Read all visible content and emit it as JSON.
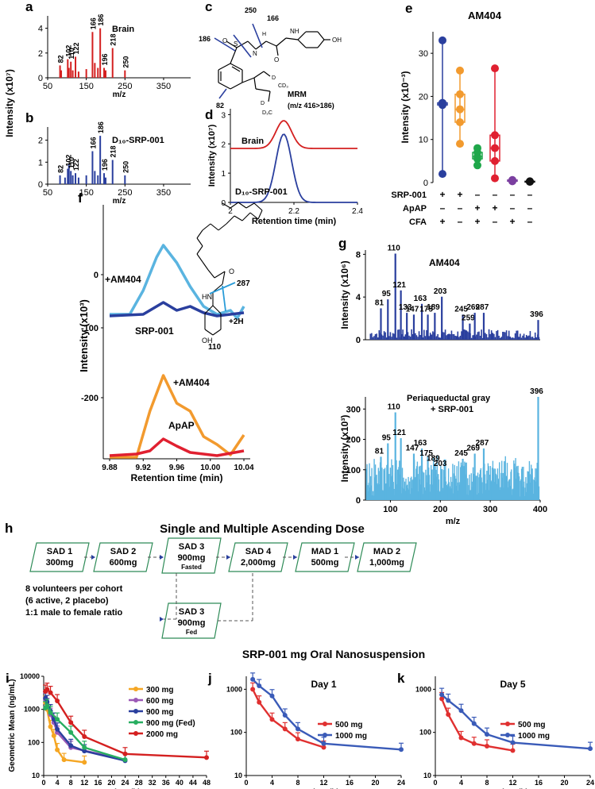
{
  "panels": {
    "a": {
      "letter": "a",
      "title": "Brain",
      "ylabel": "Intensity (x10⁷)",
      "xlabel": "m/z",
      "yticks": [
        "0",
        "2",
        "4"
      ],
      "xticks": [
        "50",
        "150",
        "250",
        "350"
      ],
      "chart_data": {
        "type": "bar",
        "color": "#d42020",
        "xlim": [
          50,
          420
        ],
        "ylim": [
          0,
          5
        ],
        "peaks": [
          [
            82,
            1.0
          ],
          [
            85,
            0.6
          ],
          [
            102,
            1.5
          ],
          [
            105,
            0.8
          ],
          [
            110,
            1.3
          ],
          [
            115,
            0.6
          ],
          [
            122,
            1.7
          ],
          [
            130,
            0.5
          ],
          [
            150,
            0.7
          ],
          [
            166,
            3.7
          ],
          [
            172,
            1.2
          ],
          [
            180,
            0.8
          ],
          [
            186,
            4.0
          ],
          [
            196,
            0.8
          ],
          [
            200,
            0.6
          ],
          [
            218,
            2.4
          ],
          [
            250,
            0.6
          ]
        ],
        "labels": [
          [
            82,
            "82"
          ],
          [
            102,
            "102"
          ],
          [
            110,
            "110"
          ],
          [
            122,
            "122"
          ],
          [
            166,
            "166"
          ],
          [
            186,
            "186"
          ],
          [
            196,
            "196"
          ],
          [
            218,
            "218"
          ],
          [
            250,
            "250"
          ]
        ]
      }
    },
    "b": {
      "letter": "b",
      "title": "D₁₀-SRP-001",
      "ylabel": "Intensity (x10⁷)",
      "xlabel": "m/z",
      "yticks": [
        "0",
        "1",
        "2"
      ],
      "xticks": [
        "50",
        "150",
        "250",
        "350"
      ],
      "chart_data": {
        "type": "bar",
        "color": "#2a3f9e",
        "xlim": [
          50,
          420
        ],
        "ylim": [
          0,
          2.6
        ],
        "peaks": [
          [
            82,
            0.4
          ],
          [
            95,
            0.3
          ],
          [
            102,
            0.7
          ],
          [
            105,
            0.9
          ],
          [
            110,
            0.6
          ],
          [
            115,
            0.4
          ],
          [
            122,
            0.5
          ],
          [
            130,
            0.3
          ],
          [
            150,
            0.4
          ],
          [
            166,
            1.5
          ],
          [
            172,
            0.6
          ],
          [
            180,
            0.4
          ],
          [
            186,
            2.2
          ],
          [
            196,
            0.5
          ],
          [
            200,
            0.3
          ],
          [
            218,
            1.1
          ],
          [
            250,
            0.4
          ]
        ],
        "labels": [
          [
            82,
            "82"
          ],
          [
            102,
            "102"
          ],
          [
            110,
            "110"
          ],
          [
            122,
            "122"
          ],
          [
            166,
            "166"
          ],
          [
            186,
            "186"
          ],
          [
            196,
            "196"
          ],
          [
            218,
            "218"
          ],
          [
            250,
            "250"
          ]
        ]
      }
    },
    "c": {
      "letter": "c",
      "mrm": "MRM",
      "mrm_sub": "(m/z 416>186)",
      "labels": {
        "l250": "250",
        "l166": "166",
        "l186": "186",
        "l82": "82",
        "oh": "OH",
        "nh": "NH",
        "n": "N",
        "o": "O",
        "s": "S",
        "h": "H",
        "d": "D",
        "cd3": "CD₃",
        "d3c": "D₃C"
      }
    },
    "d": {
      "letter": "d",
      "ylabel": "Intensity (x10⁷)",
      "xlabel": "Retention time (min)",
      "yticks": [
        "0",
        "1",
        "2",
        "3"
      ],
      "xticks": [
        "2",
        "2.2",
        "2.4"
      ],
      "series": [
        {
          "name": "Brain",
          "color": "#d42020"
        },
        {
          "name": "D₁₀-SRP-001",
          "color": "#2a3f9e"
        }
      ]
    },
    "e": {
      "letter": "e",
      "title": "AM404",
      "ylabel": "Intensity (x10⁻³)",
      "yticks": [
        "0",
        "10",
        "20",
        "30"
      ],
      "rows": [
        {
          "name": "SRP-001",
          "marks": [
            "+",
            "+",
            "–",
            "–",
            "–",
            "–"
          ]
        },
        {
          "name": "ApAP",
          "marks": [
            "–",
            "–",
            "+",
            "+",
            "–",
            "–"
          ]
        },
        {
          "name": "CFA",
          "marks": [
            "+",
            "–",
            "+",
            "–",
            "+",
            "–"
          ]
        }
      ],
      "chart_data": {
        "type": "box",
        "ylim": [
          0,
          35
        ],
        "groups": [
          {
            "color": "#2a3f9e",
            "points": [
              33,
              18.5,
              18,
              2
            ]
          },
          {
            "color": "#f29a2e",
            "points": [
              26,
              20.5,
              17,
              14,
              9
            ]
          },
          {
            "color": "#1fa74a",
            "points": [
              8,
              7,
              6,
              5.5,
              4
            ]
          },
          {
            "color": "#e02030",
            "points": [
              26.5,
              11,
              8,
              5,
              1
            ]
          },
          {
            "color": "#7b3fa0",
            "points": [
              0.6,
              0.3
            ]
          },
          {
            "color": "#111111",
            "points": [
              0.3,
              0.2,
              0.2
            ]
          }
        ]
      }
    },
    "f": {
      "letter": "f",
      "ylabel": "Intensity (x10³)",
      "xlabel": "Retention time (min)",
      "yticks": [
        "0",
        "-100",
        "-200"
      ],
      "xticks": [
        "9.88",
        "9.92",
        "9.96",
        "10.00",
        "10.04"
      ],
      "frag_labels": {
        "f287": "287",
        "f110": "110",
        "plus2h": "+2H",
        "hn": "HN",
        "o": "O",
        "oh": "OH"
      },
      "series": [
        {
          "name": "+AM404",
          "color": "#5ab4e0"
        },
        {
          "name": "SRP-001",
          "color": "#2a3f9e"
        },
        {
          "name": "+AM404",
          "color": "#f29a2e"
        },
        {
          "name": "ApAP",
          "color": "#e02030"
        }
      ]
    },
    "g": {
      "letter": "g",
      "xlabel": "m/z",
      "xticks": [
        "100",
        "200",
        "300",
        "400"
      ],
      "top": {
        "title": "AM404",
        "ylabel": "Intensity (x10⁶)",
        "yticks": [
          "0",
          "4",
          "8"
        ],
        "labels": [
          [
            110,
            "110"
          ],
          [
            81,
            "81"
          ],
          [
            95,
            "95"
          ],
          [
            121,
            "121"
          ],
          [
            133,
            "133"
          ],
          [
            147,
            "147"
          ],
          [
            163,
            "163"
          ],
          [
            175,
            "175"
          ],
          [
            189,
            "189"
          ],
          [
            203,
            "203"
          ],
          [
            245,
            "245"
          ],
          [
            259,
            "259"
          ],
          [
            269,
            "269"
          ],
          [
            287,
            "287"
          ],
          [
            396,
            "396"
          ]
        ]
      },
      "bottom": {
        "title": "Periaqueductal gray",
        "title2": "+ SRP-001",
        "ylabel": "Intensity (x10³)",
        "yticks": [
          "0",
          "100",
          "200",
          "300"
        ],
        "labels": [
          [
            110,
            "110"
          ],
          [
            81,
            "81"
          ],
          [
            95,
            "95"
          ],
          [
            121,
            "121"
          ],
          [
            147,
            "147"
          ],
          [
            163,
            "163"
          ],
          [
            175,
            "175"
          ],
          [
            189,
            "189"
          ],
          [
            203,
            "203"
          ],
          [
            245,
            "245"
          ],
          [
            269,
            "269"
          ],
          [
            287,
            "287"
          ],
          [
            396,
            "396"
          ]
        ]
      }
    },
    "h": {
      "letter": "h",
      "title": "Single and Multiple Ascending Dose",
      "boxes": [
        {
          "l1": "SAD 1",
          "l2": "300mg"
        },
        {
          "l1": "SAD 2",
          "l2": "600mg"
        },
        {
          "l1": "SAD 3",
          "l2": "900mg",
          "l3": "Fasted"
        },
        {
          "l1": "SAD 4",
          "l2": "2,000mg"
        },
        {
          "l1": "MAD 1",
          "l2": "500mg"
        },
        {
          "l1": "MAD 2",
          "l2": "1,000mg"
        },
        {
          "l1": "SAD 3",
          "l2": "900mg",
          "l3": "Fed"
        }
      ],
      "notes": [
        "8 volunteers per cohort",
        "(6 active, 2 placebo)",
        "1:1 male to female ratio"
      ]
    },
    "pk_title": "SRP-001 mg Oral Nanosuspension",
    "i": {
      "letter": "i",
      "ylabel": "Geometric Mean (ng/mL)",
      "xlabel": "Time (h)",
      "yticks": [
        "10",
        "100",
        "1000",
        "10000"
      ],
      "xticks": [
        "0",
        "4",
        "8",
        "12",
        "16",
        "20",
        "24",
        "28",
        "32",
        "36",
        "40",
        "44",
        "48"
      ],
      "chart_data": {
        "type": "line",
        "yscale": "log",
        "xlim": [
          0,
          48
        ],
        "ylim": [
          10,
          10000
        ],
        "series": [
          {
            "name": "300 mg",
            "color": "#f5a623",
            "x": [
              0.5,
              1,
              2,
              3,
              4,
              6,
              12
            ],
            "y": [
              1600,
              1000,
              300,
              160,
              60,
              30,
              25
            ]
          },
          {
            "name": "600 mg",
            "color": "#9b59b6",
            "x": [
              0.5,
              1,
              2,
              3,
              4,
              8,
              24
            ],
            "y": [
              2000,
              1400,
              700,
              400,
              200,
              70,
              30
            ]
          },
          {
            "name": "900 mg",
            "color": "#2a3f9e",
            "x": [
              0.5,
              1,
              2,
              3,
              4,
              8,
              12,
              24
            ],
            "y": [
              2200,
              1700,
              900,
              500,
              250,
              80,
              55,
              28
            ]
          },
          {
            "name": "900 mg (Fed)",
            "color": "#27ae60",
            "x": [
              0.5,
              1,
              2,
              4,
              8,
              12,
              24
            ],
            "y": [
              1100,
              1300,
              800,
              500,
              200,
              70,
              30
            ]
          },
          {
            "name": "2000 mg",
            "color": "#d42020",
            "x": [
              0.5,
              1,
              2,
              4,
              8,
              12,
              24,
              48
            ],
            "y": [
              3500,
              4000,
              3200,
              1800,
              400,
              150,
              45,
              35
            ]
          }
        ]
      }
    },
    "j": {
      "letter": "j",
      "title": "Day 1",
      "xlabel": "Time (h)",
      "yticks": [
        "10",
        "100",
        "1000"
      ],
      "xticks": [
        "0",
        "4",
        "8",
        "12",
        "16",
        "20",
        "24"
      ],
      "chart_data": {
        "type": "line",
        "yscale": "log",
        "xlim": [
          0,
          24
        ],
        "ylim": [
          10,
          2000
        ],
        "series": [
          {
            "name": "500 mg",
            "color": "#e03030",
            "x": [
              1,
              2,
              4,
              6,
              8,
              12
            ],
            "y": [
              1000,
              500,
              200,
              120,
              70,
              45
            ]
          },
          {
            "name": "1000 mg",
            "color": "#3a5bb8",
            "x": [
              1,
              2,
              4,
              6,
              8,
              12,
              24
            ],
            "y": [
              1700,
              1200,
              700,
              250,
              120,
              55,
              40
            ]
          }
        ]
      }
    },
    "k": {
      "letter": "k",
      "title": "Day 5",
      "xlabel": "Time (h)",
      "yticks": [
        "10",
        "100",
        "1000"
      ],
      "xticks": [
        "0",
        "4",
        "8",
        "12",
        "16",
        "20",
        "24"
      ],
      "chart_data": {
        "type": "line",
        "yscale": "log",
        "xlim": [
          0,
          24
        ],
        "ylim": [
          10,
          2000
        ],
        "series": [
          {
            "name": "500 mg",
            "color": "#e03030",
            "x": [
              1,
              2,
              4,
              6,
              8,
              12
            ],
            "y": [
              600,
              260,
              75,
              55,
              48,
              38
            ]
          },
          {
            "name": "1000 mg",
            "color": "#3a5bb8",
            "x": [
              1,
              2,
              4,
              6,
              8,
              12,
              24
            ],
            "y": [
              750,
              550,
              320,
              160,
              90,
              58,
              42
            ]
          }
        ]
      }
    }
  }
}
